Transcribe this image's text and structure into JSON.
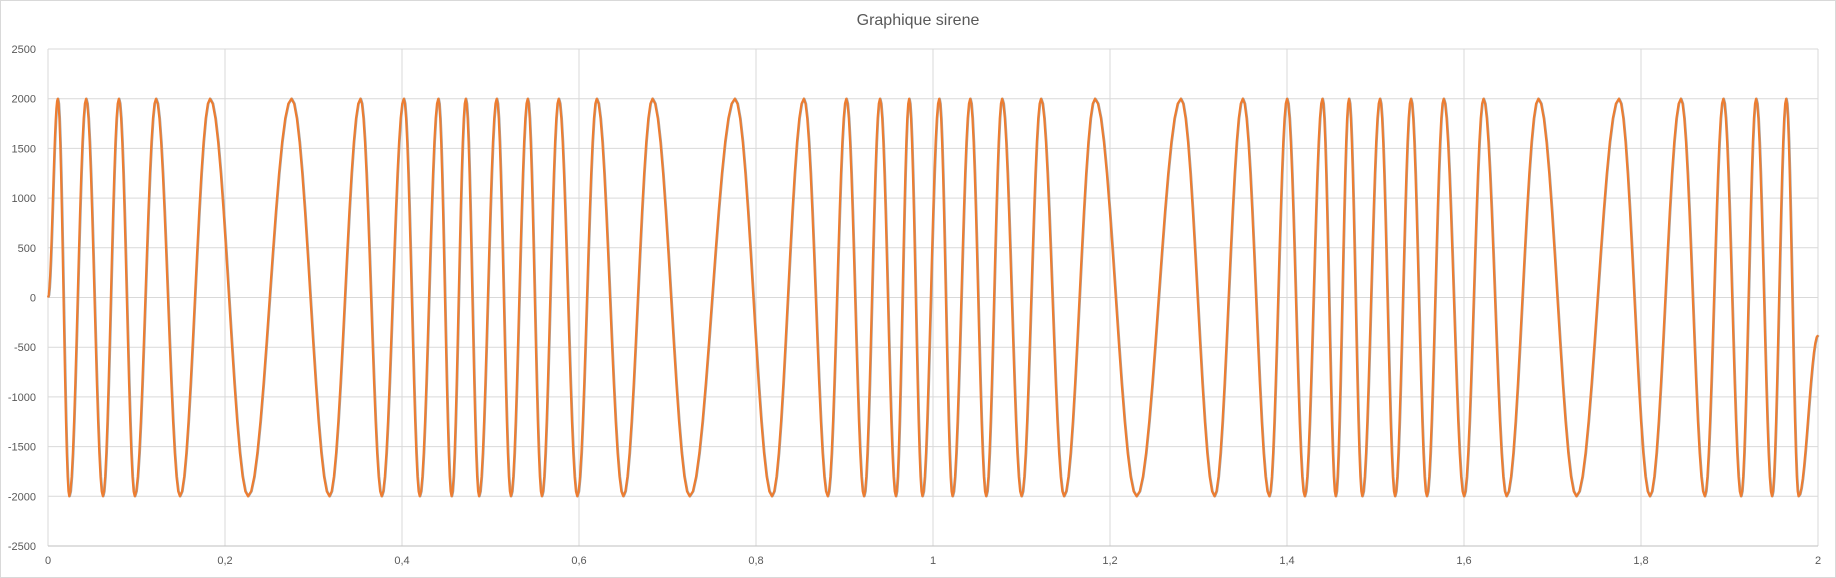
{
  "chart_data": {
    "type": "line",
    "title": "Graphique sirene",
    "xlabel": "",
    "ylabel": "",
    "xlim": [
      0,
      2
    ],
    "ylim": [
      -2500,
      2500
    ],
    "x_ticks": [
      0,
      0.2,
      0.4,
      0.6,
      0.8,
      1,
      1.2,
      1.4,
      1.6,
      1.8,
      2
    ],
    "x_tick_labels": [
      "0",
      "0,2",
      "0,4",
      "0,6",
      "0,8",
      "1",
      "1,2",
      "1,4",
      "1,6",
      "1,8",
      "2"
    ],
    "y_ticks": [
      2500,
      2000,
      1500,
      1000,
      500,
      0,
      -500,
      -1000,
      -1500,
      -2000,
      -2500
    ],
    "y_tick_labels": [
      "2500",
      "2000",
      "1500",
      "1000",
      "500",
      "0",
      "-500",
      "-1000",
      "-1500",
      "-2000",
      "-2500"
    ],
    "grid": true,
    "legend": "none",
    "amplitude": 2000,
    "extrema_x": [
      0,
      0.011,
      0.024,
      0.043,
      0.062,
      0.08,
      0.098,
      0.122,
      0.149,
      0.183,
      0.226,
      0.275,
      0.318,
      0.353,
      0.377,
      0.402,
      0.42,
      0.441,
      0.456,
      0.472,
      0.487,
      0.507,
      0.523,
      0.542,
      0.558,
      0.577,
      0.598,
      0.62,
      0.65,
      0.683,
      0.725,
      0.776,
      0.818,
      0.854,
      0.881,
      0.902,
      0.922,
      0.94,
      0.958,
      0.973,
      0.988,
      1.007,
      1.022,
      1.042,
      1.06,
      1.078,
      1.1,
      1.122,
      1.148,
      1.183,
      1.23,
      1.28,
      1.318,
      1.35,
      1.38,
      1.4,
      1.42,
      1.44,
      1.455,
      1.47,
      1.485,
      1.505,
      1.522,
      1.54,
      1.558,
      1.577,
      1.6,
      1.622,
      1.648,
      1.684,
      1.727,
      1.775,
      1.81,
      1.845,
      1.872,
      1.893,
      1.913,
      1.93,
      1.948,
      1.964,
      1.978
    ],
    "extrema_y": [
      0,
      2000,
      -2000,
      2000,
      -2000,
      2000,
      -2000,
      2000,
      -2000,
      2000,
      -2000,
      2000,
      -2000,
      2000,
      -2000,
      2000,
      -2000,
      2000,
      -2000,
      2000,
      -2000,
      2000,
      -2000,
      2000,
      -2000,
      2000,
      -2000,
      2000,
      -2000,
      2000,
      -2000,
      2000,
      -2000,
      2000,
      -2000,
      2000,
      -2000,
      2000,
      -2000,
      2000,
      -2000,
      2000,
      -2000,
      2000,
      -2000,
      2000,
      -2000,
      2000,
      -2000,
      2000,
      -2000,
      2000,
      -2000,
      2000,
      -2000,
      2000,
      -2000,
      2000,
      -2000,
      2000,
      -2000,
      2000,
      -2000,
      2000,
      -2000,
      2000,
      -2000,
      2000,
      -2000,
      2000,
      -2000,
      2000,
      -2000,
      2000,
      -2000,
      2000,
      -2000,
      2000,
      -2000,
      2000,
      -2000
    ],
    "end_point": [
      2,
      -380
    ],
    "series": [
      {
        "color": "#ed7d31"
      },
      {
        "color": "#a5a5a5"
      }
    ],
    "grid_color": "#d9d9d9",
    "axis_color": "#bfbfbf"
  }
}
